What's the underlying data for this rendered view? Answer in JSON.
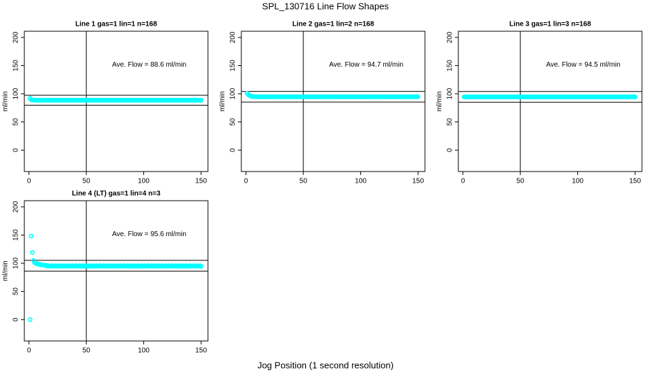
{
  "title": "SPL_130716  Line Flow Shapes",
  "xlabel": "Jog Position (1 second resolution)",
  "chart_data": [
    {
      "type": "scatter",
      "title": "Line 1 gas=1 lin=1 n=168",
      "ylabel": "ml/min",
      "annotation": "Ave. Flow =  88.6  ml/min",
      "xlim": [
        -4,
        156
      ],
      "ylim": [
        -38,
        211
      ],
      "xticks": [
        0,
        50,
        100,
        150
      ],
      "yticks": [
        0,
        50,
        100,
        150,
        200
      ],
      "hlines": [
        97.5,
        79.7
      ],
      "vlines": [
        50
      ],
      "color": "#00ffff",
      "x": [
        1,
        2,
        3,
        4,
        5,
        6,
        7,
        8,
        9,
        10,
        11,
        12,
        13,
        14,
        15,
        16,
        17,
        18,
        19,
        20,
        21,
        22,
        23,
        24,
        25,
        26,
        27,
        28,
        29,
        30,
        31,
        32,
        33,
        34,
        35,
        36,
        37,
        38,
        39,
        40,
        41,
        42,
        43,
        44,
        45,
        46,
        47,
        48,
        49,
        50,
        51,
        52,
        53,
        54,
        55,
        56,
        57,
        58,
        59,
        60,
        61,
        62,
        63,
        64,
        65,
        66,
        67,
        68,
        69,
        70,
        71,
        72,
        73,
        74,
        75,
        76,
        77,
        78,
        79,
        80,
        81,
        82,
        83,
        84,
        85,
        86,
        87,
        88,
        89,
        90,
        91,
        92,
        93,
        94,
        95,
        96,
        97,
        98,
        99,
        100,
        101,
        102,
        103,
        104,
        105,
        106,
        107,
        108,
        109,
        110,
        111,
        112,
        113,
        114,
        115,
        116,
        117,
        118,
        119,
        120,
        121,
        122,
        123,
        124,
        125,
        126,
        127,
        128,
        129,
        130,
        131,
        132,
        133,
        134,
        135,
        136,
        137,
        138,
        139,
        140,
        141,
        142,
        143,
        144,
        145,
        146,
        147,
        148,
        149,
        150
      ],
      "values": [
        92,
        89.5,
        89,
        88.8,
        88.7,
        88.6,
        88.6,
        88.6,
        88.6,
        88.6,
        88.6,
        88.6,
        88.6,
        88.6,
        88.6,
        88.6,
        88.6,
        88.6,
        88.6,
        88.6,
        88.6,
        88.6,
        88.6,
        88.6,
        88.6,
        88.6,
        88.6,
        88.6,
        88.6,
        88.6,
        88.6,
        88.6,
        88.6,
        88.6,
        88.6,
        88.6,
        88.6,
        88.6,
        88.6,
        88.6,
        88.6,
        88.6,
        88.6,
        88.6,
        88.6,
        88.6,
        88.6,
        88.6,
        88.6,
        88.6,
        88.6,
        88.6,
        88.6,
        88.6,
        88.6,
        88.6,
        88.6,
        88.6,
        88.6,
        88.6,
        88.6,
        88.6,
        88.6,
        88.6,
        88.6,
        88.6,
        88.6,
        88.6,
        88.6,
        88.6,
        88.6,
        88.6,
        88.6,
        88.6,
        88.6,
        88.6,
        88.6,
        88.6,
        88.6,
        88.6,
        88.6,
        88.6,
        88.6,
        88.6,
        88.6,
        88.6,
        88.6,
        88.6,
        88.6,
        88.6,
        88.6,
        88.6,
        88.6,
        88.6,
        88.6,
        88.6,
        88.6,
        88.6,
        88.6,
        88.6,
        88.6,
        88.6,
        88.6,
        88.6,
        88.6,
        88.6,
        88.6,
        88.6,
        88.6,
        88.6,
        88.6,
        88.6,
        88.6,
        88.6,
        88.6,
        88.6,
        88.6,
        88.6,
        88.6,
        88.6,
        88.6,
        88.6,
        88.6,
        88.6,
        88.6,
        88.6,
        88.6,
        88.6,
        88.6,
        88.6,
        88.6,
        88.6,
        88.6,
        88.6,
        88.6,
        88.6,
        88.6,
        88.6,
        88.6,
        88.6,
        88.6,
        88.6,
        88.6,
        88.6,
        88.6,
        88.6,
        88.6,
        88.6,
        88.6,
        88.6
      ]
    },
    {
      "type": "scatter",
      "title": "Line 2 gas=1 lin=2 n=168",
      "ylabel": "ml/min",
      "annotation": "Ave. Flow =  94.7  ml/min",
      "xlim": [
        -4,
        156
      ],
      "ylim": [
        -38,
        211
      ],
      "xticks": [
        0,
        50,
        100,
        150
      ],
      "yticks": [
        0,
        50,
        100,
        150,
        200
      ],
      "hlines": [
        104.2,
        85.2
      ],
      "vlines": [
        50
      ],
      "color": "#00ffff",
      "x": [
        1,
        2,
        3,
        4,
        5,
        6,
        7,
        8,
        9,
        10,
        11,
        12,
        13,
        14,
        15,
        16,
        17,
        18,
        19,
        20,
        21,
        22,
        23,
        24,
        25,
        26,
        27,
        28,
        29,
        30,
        31,
        32,
        33,
        34,
        35,
        36,
        37,
        38,
        39,
        40,
        41,
        42,
        43,
        44,
        45,
        46,
        47,
        48,
        49,
        50,
        51,
        52,
        53,
        54,
        55,
        56,
        57,
        58,
        59,
        60,
        61,
        62,
        63,
        64,
        65,
        66,
        67,
        68,
        69,
        70,
        71,
        72,
        73,
        74,
        75,
        76,
        77,
        78,
        79,
        80,
        81,
        82,
        83,
        84,
        85,
        86,
        87,
        88,
        89,
        90,
        91,
        92,
        93,
        94,
        95,
        96,
        97,
        98,
        99,
        100,
        101,
        102,
        103,
        104,
        105,
        106,
        107,
        108,
        109,
        110,
        111,
        112,
        113,
        114,
        115,
        116,
        117,
        118,
        119,
        120,
        121,
        122,
        123,
        124,
        125,
        126,
        127,
        128,
        129,
        130,
        131,
        132,
        133,
        134,
        135,
        136,
        137,
        138,
        139,
        140,
        141,
        142,
        143,
        144,
        145,
        146,
        147,
        148,
        149,
        150
      ],
      "values": [
        101,
        98.5,
        97,
        96,
        95.5,
        95.2,
        95,
        94.9,
        94.8,
        94.7,
        94.7,
        94.7,
        94.7,
        94.7,
        94.7,
        94.7,
        94.7,
        94.7,
        94.7,
        94.7,
        94.7,
        94.7,
        94.7,
        94.7,
        94.7,
        94.7,
        94.7,
        94.7,
        94.7,
        94.7,
        94.7,
        94.7,
        94.7,
        94.7,
        94.7,
        94.7,
        94.7,
        94.7,
        94.7,
        94.7,
        94.7,
        94.7,
        94.7,
        94.7,
        94.7,
        94.7,
        94.7,
        94.7,
        94.7,
        94.7,
        94.7,
        94.7,
        94.7,
        94.7,
        94.7,
        94.7,
        94.7,
        94.7,
        94.7,
        94.7,
        94.7,
        94.7,
        94.7,
        94.7,
        94.7,
        94.7,
        94.7,
        94.7,
        94.7,
        94.7,
        94.7,
        94.7,
        94.7,
        94.7,
        94.7,
        94.7,
        94.7,
        94.7,
        94.7,
        94.7,
        94.7,
        94.7,
        94.7,
        94.7,
        94.7,
        94.7,
        94.7,
        94.7,
        94.7,
        94.7,
        94.7,
        94.7,
        94.7,
        94.7,
        94.7,
        94.7,
        94.7,
        94.7,
        94.7,
        94.7,
        94.7,
        94.7,
        94.7,
        94.7,
        94.7,
        94.7,
        94.7,
        94.7,
        94.7,
        94.7,
        94.7,
        94.7,
        94.7,
        94.7,
        94.7,
        94.7,
        94.7,
        94.7,
        94.7,
        94.7,
        94.7,
        94.7,
        94.7,
        94.7,
        94.7,
        94.7,
        94.7,
        94.7,
        94.7,
        94.7,
        94.7,
        94.7,
        94.7,
        94.7,
        94.7,
        94.7,
        94.7,
        94.7,
        94.7,
        94.7,
        94.7,
        94.7,
        94.7,
        94.7,
        94.7,
        94.7,
        94.7,
        94.7,
        94.7,
        94.7
      ]
    },
    {
      "type": "scatter",
      "title": "Line 3 gas=1 lin=3 n=168",
      "ylabel": "ml/min",
      "annotation": "Ave. Flow =  94.5  ml/min",
      "xlim": [
        -4,
        156
      ],
      "ylim": [
        -38,
        211
      ],
      "xticks": [
        0,
        50,
        100,
        150
      ],
      "yticks": [
        0,
        50,
        100,
        150,
        200
      ],
      "hlines": [
        104,
        85
      ],
      "vlines": [
        50
      ],
      "color": "#00ffff",
      "x": [
        1,
        2,
        3,
        4,
        5,
        6,
        7,
        8,
        9,
        10,
        11,
        12,
        13,
        14,
        15,
        16,
        17,
        18,
        19,
        20,
        21,
        22,
        23,
        24,
        25,
        26,
        27,
        28,
        29,
        30,
        31,
        32,
        33,
        34,
        35,
        36,
        37,
        38,
        39,
        40,
        41,
        42,
        43,
        44,
        45,
        46,
        47,
        48,
        49,
        50,
        51,
        52,
        53,
        54,
        55,
        56,
        57,
        58,
        59,
        60,
        61,
        62,
        63,
        64,
        65,
        66,
        67,
        68,
        69,
        70,
        71,
        72,
        73,
        74,
        75,
        76,
        77,
        78,
        79,
        80,
        81,
        82,
        83,
        84,
        85,
        86,
        87,
        88,
        89,
        90,
        91,
        92,
        93,
        94,
        95,
        96,
        97,
        98,
        99,
        100,
        101,
        102,
        103,
        104,
        105,
        106,
        107,
        108,
        109,
        110,
        111,
        112,
        113,
        114,
        115,
        116,
        117,
        118,
        119,
        120,
        121,
        122,
        123,
        124,
        125,
        126,
        127,
        128,
        129,
        130,
        131,
        132,
        133,
        134,
        135,
        136,
        137,
        138,
        139,
        140,
        141,
        142,
        143,
        144,
        145,
        146,
        147,
        148,
        149,
        150
      ],
      "values": [
        94.5,
        94.5,
        94.5,
        94.5,
        94.5,
        94.5,
        94.5,
        94.5,
        94.5,
        94.5,
        94.5,
        94.5,
        94.5,
        94.5,
        94.5,
        94.5,
        94.5,
        94.5,
        94.5,
        94.5,
        94.5,
        94.5,
        94.5,
        94.5,
        94.5,
        94.5,
        94.5,
        94.5,
        94.5,
        94.5,
        94.5,
        94.5,
        94.5,
        94.5,
        94.5,
        94.5,
        94.5,
        94.5,
        94.5,
        94.5,
        94.5,
        94.5,
        94.5,
        94.5,
        94.5,
        94.5,
        94.5,
        94.5,
        94.5,
        94.5,
        94.5,
        94.5,
        94.5,
        94.5,
        94.5,
        94.5,
        94.5,
        94.5,
        94.5,
        94.5,
        94.5,
        94.5,
        94.5,
        94.5,
        94.5,
        94.5,
        94.5,
        94.5,
        94.5,
        94.5,
        94.5,
        94.5,
        94.5,
        94.5,
        94.5,
        94.5,
        94.5,
        94.5,
        94.5,
        94.5,
        94.5,
        94.5,
        94.5,
        94.5,
        94.5,
        94.5,
        94.5,
        94.5,
        94.5,
        94.5,
        94.5,
        94.5,
        94.5,
        94.5,
        94.5,
        94.5,
        94.5,
        94.5,
        94.5,
        94.5,
        94.5,
        94.5,
        94.5,
        94.5,
        94.5,
        94.5,
        94.5,
        94.5,
        94.5,
        94.5,
        94.5,
        94.5,
        94.5,
        94.5,
        94.5,
        94.5,
        94.5,
        94.5,
        94.5,
        94.5,
        94.5,
        94.5,
        94.5,
        94.5,
        94.5,
        94.5,
        94.5,
        94.5,
        94.5,
        94.5,
        94.5,
        94.5,
        94.5,
        94.5,
        94.5,
        94.5,
        94.5,
        94.5,
        94.5,
        94.5,
        94.5,
        94.5,
        94.5,
        94.5,
        94.5,
        94.5,
        94.5,
        94.5,
        94.5,
        94.5
      ]
    },
    {
      "type": "scatter",
      "title": "Line 4 (LT) gas=1 lin=4 n=3",
      "ylabel": "ml/min",
      "annotation": "Ave. Flow =  95.6  ml/min",
      "xlim": [
        -4,
        156
      ],
      "ylim": [
        -38,
        211
      ],
      "xticks": [
        0,
        50,
        100,
        150
      ],
      "yticks": [
        0,
        50,
        100,
        150,
        200
      ],
      "hlines": [
        105.2,
        86
      ],
      "vlines": [
        50
      ],
      "color": "#00ffff",
      "x": [
        1,
        2,
        3,
        4,
        5,
        6,
        7,
        8,
        9,
        10,
        11,
        12,
        13,
        14,
        15,
        16,
        17,
        18,
        19,
        20,
        21,
        22,
        23,
        24,
        25,
        26,
        27,
        28,
        29,
        30,
        31,
        32,
        33,
        34,
        35,
        36,
        37,
        38,
        39,
        40,
        41,
        42,
        43,
        44,
        45,
        46,
        47,
        48,
        49,
        50,
        51,
        52,
        53,
        54,
        55,
        56,
        57,
        58,
        59,
        60,
        61,
        62,
        63,
        64,
        65,
        66,
        67,
        68,
        69,
        70,
        71,
        72,
        73,
        74,
        75,
        76,
        77,
        78,
        79,
        80,
        81,
        82,
        83,
        84,
        85,
        86,
        87,
        88,
        89,
        90,
        91,
        92,
        93,
        94,
        95,
        96,
        97,
        98,
        99,
        100,
        101,
        102,
        103,
        104,
        105,
        106,
        107,
        108,
        109,
        110,
        111,
        112,
        113,
        114,
        115,
        116,
        117,
        118,
        119,
        120,
        121,
        122,
        123,
        124,
        125,
        126,
        127,
        128,
        129,
        130,
        131,
        132,
        133,
        134,
        135,
        136,
        137,
        138,
        139,
        140,
        141,
        142,
        143,
        144,
        145,
        146,
        147,
        148,
        149,
        150
      ],
      "values": [
        0,
        148,
        119,
        105,
        101,
        100,
        99,
        98.5,
        98,
        97.5,
        97,
        97,
        96.5,
        96.5,
        96,
        95,
        95.5,
        94.5,
        95,
        95.5,
        94.5,
        95,
        95.5,
        94.5,
        95,
        95.5,
        94.5,
        95,
        95.5,
        94.5,
        95,
        95.5,
        94.5,
        95,
        95.5,
        94.5,
        95,
        95.5,
        94.5,
        95,
        95.5,
        94.5,
        95,
        95.5,
        94.5,
        95,
        95.5,
        94.5,
        95,
        95.5,
        94.5,
        95,
        95.5,
        94.5,
        95,
        95.5,
        94.5,
        95,
        95.5,
        94.5,
        95,
        95.5,
        94.5,
        95,
        95.5,
        94.5,
        95,
        95.5,
        94.5,
        95,
        95.5,
        94.5,
        95,
        95.5,
        94.5,
        95,
        95.5,
        94.5,
        95,
        95.5,
        94.5,
        95,
        95.5,
        94.5,
        95,
        95.5,
        94.5,
        95,
        95.5,
        94.5,
        95,
        95.5,
        94.5,
        95,
        95.5,
        94.5,
        95,
        95.5,
        94.5,
        95,
        95.5,
        94.5,
        95,
        95.5,
        94.5,
        95,
        95.5,
        94.5,
        95,
        95.5,
        94.5,
        95,
        95.5,
        94.5,
        95,
        95.5,
        94.5,
        95,
        95.5,
        94.5,
        95,
        95.5,
        94.5,
        95,
        95.5,
        94.5,
        95,
        95.5,
        94.5,
        95,
        95.5,
        94.5,
        95,
        95.5,
        94.5,
        95,
        95.5,
        94.5,
        95,
        95.5,
        94.5,
        95,
        95.5,
        94.5,
        95,
        95.5,
        94.5,
        95,
        95.5,
        94.5
      ]
    }
  ]
}
